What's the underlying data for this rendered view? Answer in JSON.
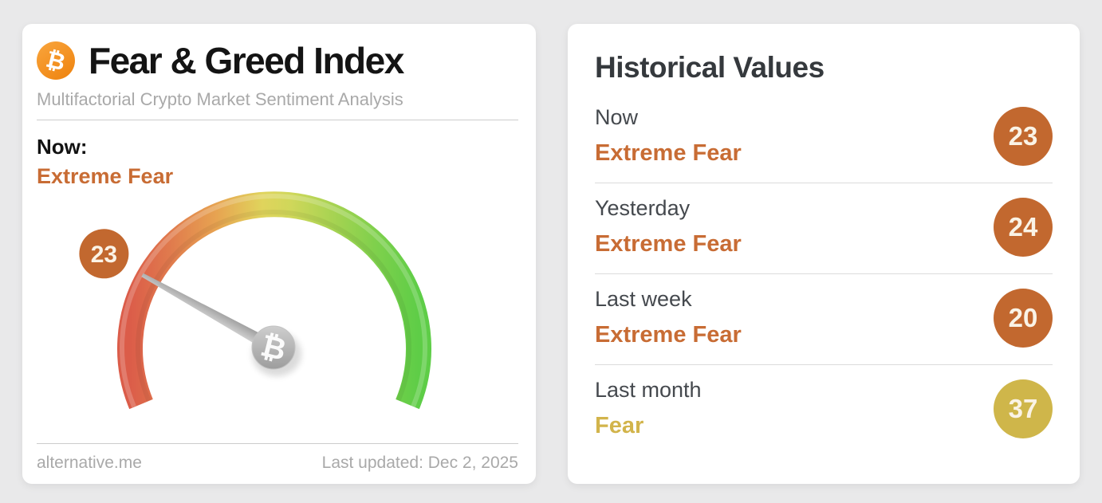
{
  "page_background": "#e9e9ea",
  "fng_card": {
    "logo_symbol": "₿",
    "title": "Fear & Greed Index",
    "subtitle": "Multifactorial Crypto Market Sentiment Analysis",
    "now_label": "Now:",
    "now_classification": "Extreme Fear",
    "now_classification_color": "#c86c34",
    "source": "alternative.me",
    "last_updated": "Last updated: Dec 2, 2025"
  },
  "historical_card": {
    "title": "Historical Values",
    "rows": [
      {
        "label": "Now",
        "classification": "Extreme Fear",
        "value": 23,
        "classification_color": "#c86c34",
        "badge_color": "#c2682f"
      },
      {
        "label": "Yesterday",
        "classification": "Extreme Fear",
        "value": 24,
        "classification_color": "#c86c34",
        "badge_color": "#c2682f"
      },
      {
        "label": "Last week",
        "classification": "Extreme Fear",
        "value": 20,
        "classification_color": "#c86c34",
        "badge_color": "#c2682f"
      },
      {
        "label": "Last month",
        "classification": "Fear",
        "value": 37,
        "classification_color": "#d2b44b",
        "badge_color": "#cfb64a"
      }
    ]
  },
  "chart_data": {
    "type": "gauge",
    "title": "Fear & Greed Index",
    "value": 23,
    "min": 0,
    "max": 100,
    "classification": "Extreme Fear",
    "value_color": "#c2682f",
    "scale_colors": [
      "#db5c49",
      "#e7a351",
      "#e0d45c",
      "#a8d352",
      "#5ecd47"
    ],
    "historical": [
      {
        "period": "Now",
        "value": 23,
        "classification": "Extreme Fear"
      },
      {
        "period": "Yesterday",
        "value": 24,
        "classification": "Extreme Fear"
      },
      {
        "period": "Last week",
        "value": 20,
        "classification": "Extreme Fear"
      },
      {
        "period": "Last month",
        "value": 37,
        "classification": "Fear"
      }
    ]
  }
}
